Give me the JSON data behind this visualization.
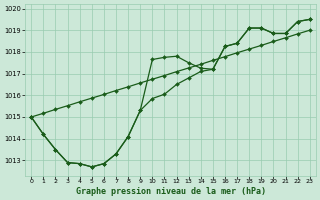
{
  "title": "Graphe pression niveau de la mer (hPa)",
  "background_color": "#cce8d8",
  "grid_color": "#99ccb0",
  "line_color": "#1a5c1a",
  "xlim": [
    -0.5,
    23.5
  ],
  "ylim": [
    1012.3,
    1020.2
  ],
  "yticks": [
    1013,
    1014,
    1015,
    1016,
    1017,
    1018,
    1019,
    1020
  ],
  "xticks": [
    0,
    1,
    2,
    3,
    4,
    5,
    6,
    7,
    8,
    9,
    10,
    11,
    12,
    13,
    14,
    15,
    16,
    17,
    18,
    19,
    20,
    21,
    22,
    23
  ],
  "series1": [
    1015.0,
    1014.2,
    1013.5,
    1012.9,
    1012.85,
    1012.7,
    1012.85,
    1013.3,
    1014.1,
    1015.3,
    1017.65,
    1017.75,
    1017.8,
    1017.5,
    1017.25,
    1017.2,
    1018.25,
    1018.4,
    1019.1,
    1019.1,
    1018.85,
    1018.85,
    1019.4,
    1019.5
  ],
  "series2": [
    1015.0,
    1014.2,
    1013.5,
    1012.9,
    1012.85,
    1012.7,
    1012.85,
    1013.3,
    1014.1,
    1015.3,
    1015.85,
    1016.05,
    1016.5,
    1016.8,
    1017.1,
    1017.2,
    1018.25,
    1018.4,
    1019.1,
    1019.1,
    1018.85,
    1018.85,
    1019.4,
    1019.5
  ],
  "series3": [
    1015.0,
    1015.17,
    1015.35,
    1015.52,
    1015.7,
    1015.87,
    1016.04,
    1016.22,
    1016.39,
    1016.57,
    1016.74,
    1016.91,
    1017.09,
    1017.26,
    1017.43,
    1017.61,
    1017.78,
    1017.96,
    1018.13,
    1018.3,
    1018.48,
    1018.65,
    1018.83,
    1019.0
  ],
  "markersize": 2.0,
  "linewidth": 0.9
}
